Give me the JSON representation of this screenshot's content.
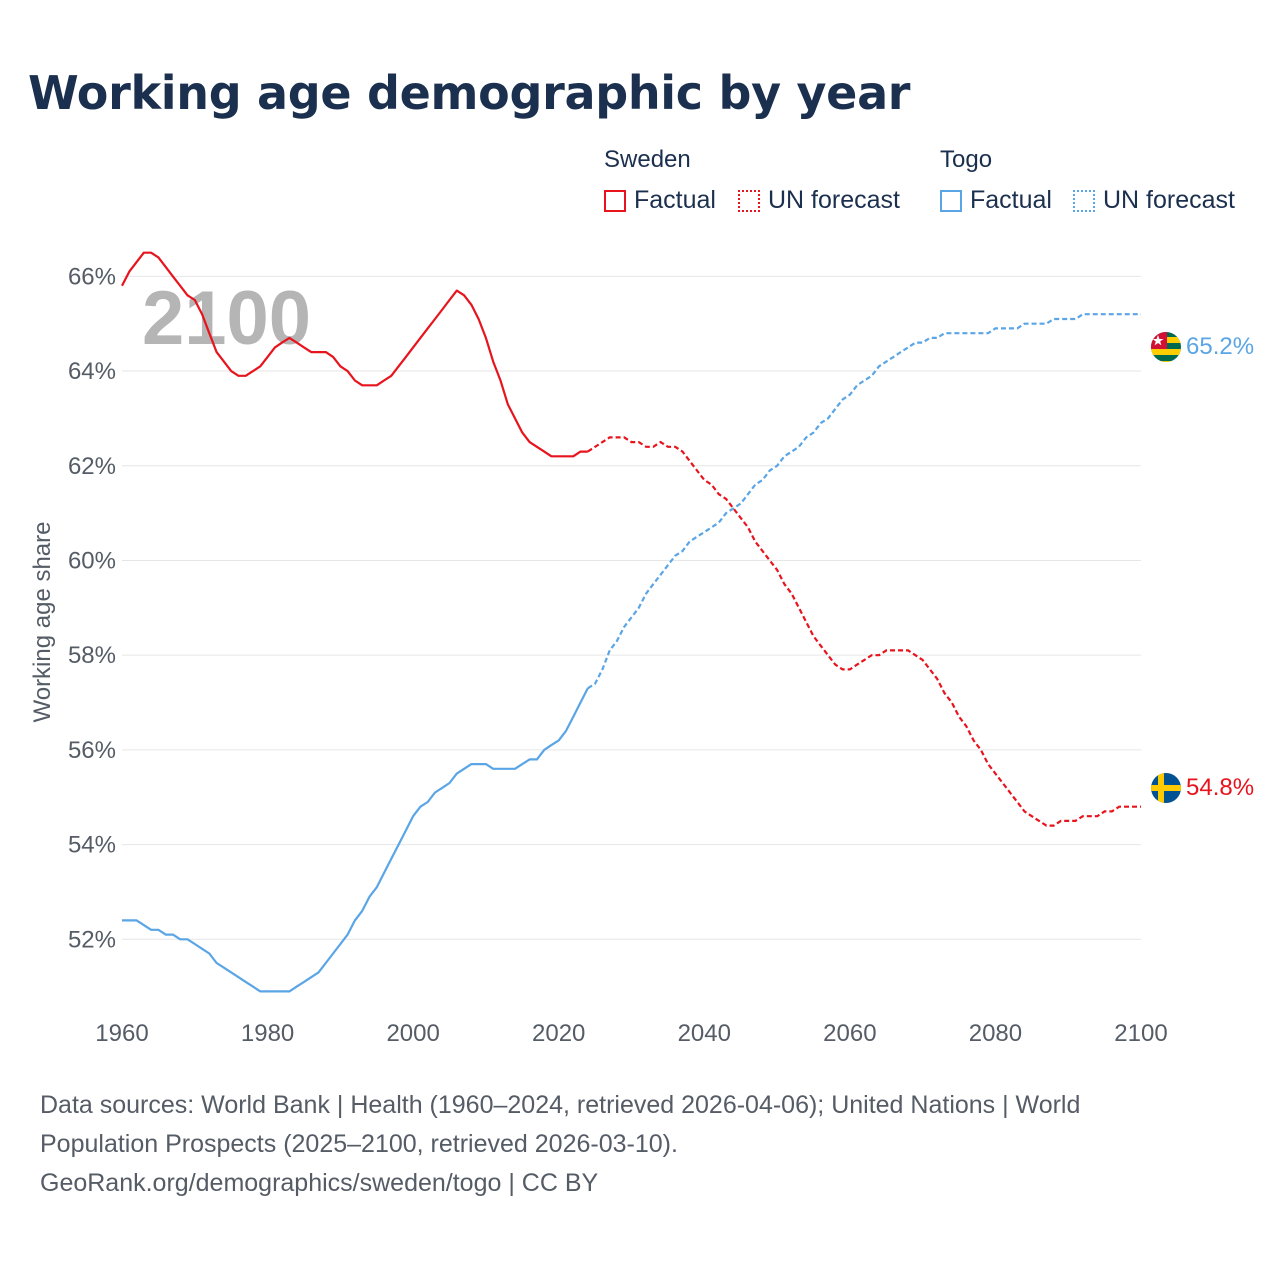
{
  "title": "Working age demographic by year",
  "legend": {
    "groups": [
      {
        "country": "Sweden",
        "factual_label": "Factual",
        "forecast_label": "UN forecast",
        "color": "#e8141d"
      },
      {
        "country": "Togo",
        "factual_label": "Factual",
        "forecast_label": "UN forecast",
        "color": "#5aa5e6"
      }
    ]
  },
  "year_overlay": "2100",
  "chart_data": {
    "type": "line",
    "title": "Working age demographic by year",
    "ylabel": "Working age share",
    "xlabel": "",
    "xlim": [
      1960,
      2100
    ],
    "ylim": [
      50,
      67
    ],
    "x_ticks": [
      1960,
      1980,
      2000,
      2020,
      2040,
      2060,
      2080,
      2100
    ],
    "y_ticks": [
      52,
      54,
      56,
      58,
      60,
      62,
      64,
      66
    ],
    "y_tick_suffix": "%",
    "grid": true,
    "factual_range": [
      1960,
      2024
    ],
    "forecast_range": [
      2024,
      2100
    ],
    "series": [
      {
        "name": "Sweden",
        "color": "#e8141d",
        "end_label": "54.8%",
        "end_flag": "sweden-flag",
        "points": [
          [
            1960,
            65.8
          ],
          [
            1961,
            66.1
          ],
          [
            1962,
            66.3
          ],
          [
            1963,
            66.5
          ],
          [
            1964,
            66.5
          ],
          [
            1965,
            66.4
          ],
          [
            1966,
            66.2
          ],
          [
            1967,
            66.0
          ],
          [
            1968,
            65.8
          ],
          [
            1969,
            65.6
          ],
          [
            1970,
            65.5
          ],
          [
            1971,
            65.2
          ],
          [
            1972,
            64.8
          ],
          [
            1973,
            64.4
          ],
          [
            1974,
            64.2
          ],
          [
            1975,
            64.0
          ],
          [
            1976,
            63.9
          ],
          [
            1977,
            63.9
          ],
          [
            1978,
            64.0
          ],
          [
            1979,
            64.1
          ],
          [
            1980,
            64.3
          ],
          [
            1981,
            64.5
          ],
          [
            1982,
            64.6
          ],
          [
            1983,
            64.7
          ],
          [
            1984,
            64.6
          ],
          [
            1985,
            64.5
          ],
          [
            1986,
            64.4
          ],
          [
            1987,
            64.4
          ],
          [
            1988,
            64.4
          ],
          [
            1989,
            64.3
          ],
          [
            1990,
            64.1
          ],
          [
            1991,
            64.0
          ],
          [
            1992,
            63.8
          ],
          [
            1993,
            63.7
          ],
          [
            1994,
            63.7
          ],
          [
            1995,
            63.7
          ],
          [
            1996,
            63.8
          ],
          [
            1997,
            63.9
          ],
          [
            1998,
            64.1
          ],
          [
            1999,
            64.3
          ],
          [
            2000,
            64.5
          ],
          [
            2001,
            64.7
          ],
          [
            2002,
            64.9
          ],
          [
            2003,
            65.1
          ],
          [
            2004,
            65.3
          ],
          [
            2005,
            65.5
          ],
          [
            2006,
            65.7
          ],
          [
            2007,
            65.6
          ],
          [
            2008,
            65.4
          ],
          [
            2009,
            65.1
          ],
          [
            2010,
            64.7
          ],
          [
            2011,
            64.2
          ],
          [
            2012,
            63.8
          ],
          [
            2013,
            63.3
          ],
          [
            2014,
            63.0
          ],
          [
            2015,
            62.7
          ],
          [
            2016,
            62.5
          ],
          [
            2017,
            62.4
          ],
          [
            2018,
            62.3
          ],
          [
            2019,
            62.2
          ],
          [
            2020,
            62.2
          ],
          [
            2021,
            62.2
          ],
          [
            2022,
            62.2
          ],
          [
            2023,
            62.3
          ],
          [
            2024,
            62.3
          ],
          [
            2025,
            62.4
          ],
          [
            2026,
            62.5
          ],
          [
            2027,
            62.6
          ],
          [
            2028,
            62.6
          ],
          [
            2029,
            62.6
          ],
          [
            2030,
            62.5
          ],
          [
            2031,
            62.5
          ],
          [
            2032,
            62.4
          ],
          [
            2033,
            62.4
          ],
          [
            2034,
            62.5
          ],
          [
            2035,
            62.4
          ],
          [
            2036,
            62.4
          ],
          [
            2037,
            62.3
          ],
          [
            2038,
            62.1
          ],
          [
            2039,
            61.9
          ],
          [
            2040,
            61.7
          ],
          [
            2041,
            61.6
          ],
          [
            2042,
            61.4
          ],
          [
            2043,
            61.3
          ],
          [
            2044,
            61.1
          ],
          [
            2045,
            60.9
          ],
          [
            2046,
            60.7
          ],
          [
            2047,
            60.4
          ],
          [
            2048,
            60.2
          ],
          [
            2049,
            60.0
          ],
          [
            2050,
            59.8
          ],
          [
            2051,
            59.5
          ],
          [
            2052,
            59.3
          ],
          [
            2053,
            59.0
          ],
          [
            2054,
            58.7
          ],
          [
            2055,
            58.4
          ],
          [
            2056,
            58.2
          ],
          [
            2057,
            58.0
          ],
          [
            2058,
            57.8
          ],
          [
            2059,
            57.7
          ],
          [
            2060,
            57.7
          ],
          [
            2061,
            57.8
          ],
          [
            2062,
            57.9
          ],
          [
            2063,
            58.0
          ],
          [
            2064,
            58.0
          ],
          [
            2065,
            58.1
          ],
          [
            2066,
            58.1
          ],
          [
            2067,
            58.1
          ],
          [
            2068,
            58.1
          ],
          [
            2069,
            58.0
          ],
          [
            2070,
            57.9
          ],
          [
            2071,
            57.7
          ],
          [
            2072,
            57.5
          ],
          [
            2073,
            57.2
          ],
          [
            2074,
            57.0
          ],
          [
            2075,
            56.7
          ],
          [
            2076,
            56.5
          ],
          [
            2077,
            56.2
          ],
          [
            2078,
            56.0
          ],
          [
            2079,
            55.7
          ],
          [
            2080,
            55.5
          ],
          [
            2081,
            55.3
          ],
          [
            2082,
            55.1
          ],
          [
            2083,
            54.9
          ],
          [
            2084,
            54.7
          ],
          [
            2085,
            54.6
          ],
          [
            2086,
            54.5
          ],
          [
            2087,
            54.4
          ],
          [
            2088,
            54.4
          ],
          [
            2089,
            54.5
          ],
          [
            2090,
            54.5
          ],
          [
            2091,
            54.5
          ],
          [
            2092,
            54.6
          ],
          [
            2093,
            54.6
          ],
          [
            2094,
            54.6
          ],
          [
            2095,
            54.7
          ],
          [
            2096,
            54.7
          ],
          [
            2097,
            54.8
          ],
          [
            2098,
            54.8
          ],
          [
            2099,
            54.8
          ],
          [
            2100,
            54.8
          ]
        ]
      },
      {
        "name": "Togo",
        "color": "#5aa5e6",
        "end_label": "65.2%",
        "end_flag": "togo-flag",
        "points": [
          [
            1960,
            52.4
          ],
          [
            1961,
            52.4
          ],
          [
            1962,
            52.4
          ],
          [
            1963,
            52.3
          ],
          [
            1964,
            52.2
          ],
          [
            1965,
            52.2
          ],
          [
            1966,
            52.1
          ],
          [
            1967,
            52.1
          ],
          [
            1968,
            52.0
          ],
          [
            1969,
            52.0
          ],
          [
            1970,
            51.9
          ],
          [
            1971,
            51.8
          ],
          [
            1972,
            51.7
          ],
          [
            1973,
            51.5
          ],
          [
            1974,
            51.4
          ],
          [
            1975,
            51.3
          ],
          [
            1976,
            51.2
          ],
          [
            1977,
            51.1
          ],
          [
            1978,
            51.0
          ],
          [
            1979,
            50.9
          ],
          [
            1980,
            50.9
          ],
          [
            1981,
            50.9
          ],
          [
            1982,
            50.9
          ],
          [
            1983,
            50.9
          ],
          [
            1984,
            51.0
          ],
          [
            1985,
            51.1
          ],
          [
            1986,
            51.2
          ],
          [
            1987,
            51.3
          ],
          [
            1988,
            51.5
          ],
          [
            1989,
            51.7
          ],
          [
            1990,
            51.9
          ],
          [
            1991,
            52.1
          ],
          [
            1992,
            52.4
          ],
          [
            1993,
            52.6
          ],
          [
            1994,
            52.9
          ],
          [
            1995,
            53.1
          ],
          [
            1996,
            53.4
          ],
          [
            1997,
            53.7
          ],
          [
            1998,
            54.0
          ],
          [
            1999,
            54.3
          ],
          [
            2000,
            54.6
          ],
          [
            2001,
            54.8
          ],
          [
            2002,
            54.9
          ],
          [
            2003,
            55.1
          ],
          [
            2004,
            55.2
          ],
          [
            2005,
            55.3
          ],
          [
            2006,
            55.5
          ],
          [
            2007,
            55.6
          ],
          [
            2008,
            55.7
          ],
          [
            2009,
            55.7
          ],
          [
            2010,
            55.7
          ],
          [
            2011,
            55.6
          ],
          [
            2012,
            55.6
          ],
          [
            2013,
            55.6
          ],
          [
            2014,
            55.6
          ],
          [
            2015,
            55.7
          ],
          [
            2016,
            55.8
          ],
          [
            2017,
            55.8
          ],
          [
            2018,
            56.0
          ],
          [
            2019,
            56.1
          ],
          [
            2020,
            56.2
          ],
          [
            2021,
            56.4
          ],
          [
            2022,
            56.7
          ],
          [
            2023,
            57.0
          ],
          [
            2024,
            57.3
          ],
          [
            2025,
            57.4
          ],
          [
            2026,
            57.7
          ],
          [
            2027,
            58.1
          ],
          [
            2028,
            58.3
          ],
          [
            2029,
            58.6
          ],
          [
            2030,
            58.8
          ],
          [
            2031,
            59.0
          ],
          [
            2032,
            59.3
          ],
          [
            2033,
            59.5
          ],
          [
            2034,
            59.7
          ],
          [
            2035,
            59.9
          ],
          [
            2036,
            60.1
          ],
          [
            2037,
            60.2
          ],
          [
            2038,
            60.4
          ],
          [
            2039,
            60.5
          ],
          [
            2040,
            60.6
          ],
          [
            2041,
            60.7
          ],
          [
            2042,
            60.8
          ],
          [
            2043,
            61.0
          ],
          [
            2044,
            61.1
          ],
          [
            2045,
            61.2
          ],
          [
            2046,
            61.4
          ],
          [
            2047,
            61.6
          ],
          [
            2048,
            61.7
          ],
          [
            2049,
            61.9
          ],
          [
            2050,
            62.0
          ],
          [
            2051,
            62.2
          ],
          [
            2052,
            62.3
          ],
          [
            2053,
            62.4
          ],
          [
            2054,
            62.6
          ],
          [
            2055,
            62.7
          ],
          [
            2056,
            62.9
          ],
          [
            2057,
            63.0
          ],
          [
            2058,
            63.2
          ],
          [
            2059,
            63.4
          ],
          [
            2060,
            63.5
          ],
          [
            2061,
            63.7
          ],
          [
            2062,
            63.8
          ],
          [
            2063,
            63.9
          ],
          [
            2064,
            64.1
          ],
          [
            2065,
            64.2
          ],
          [
            2066,
            64.3
          ],
          [
            2067,
            64.4
          ],
          [
            2068,
            64.5
          ],
          [
            2069,
            64.6
          ],
          [
            2070,
            64.6
          ],
          [
            2071,
            64.7
          ],
          [
            2072,
            64.7
          ],
          [
            2073,
            64.8
          ],
          [
            2074,
            64.8
          ],
          [
            2075,
            64.8
          ],
          [
            2076,
            64.8
          ],
          [
            2077,
            64.8
          ],
          [
            2078,
            64.8
          ],
          [
            2079,
            64.8
          ],
          [
            2080,
            64.9
          ],
          [
            2081,
            64.9
          ],
          [
            2082,
            64.9
          ],
          [
            2083,
            64.9
          ],
          [
            2084,
            65.0
          ],
          [
            2085,
            65.0
          ],
          [
            2086,
            65.0
          ],
          [
            2087,
            65.0
          ],
          [
            2088,
            65.1
          ],
          [
            2089,
            65.1
          ],
          [
            2090,
            65.1
          ],
          [
            2091,
            65.1
          ],
          [
            2092,
            65.2
          ],
          [
            2093,
            65.2
          ],
          [
            2094,
            65.2
          ],
          [
            2095,
            65.2
          ],
          [
            2096,
            65.2
          ],
          [
            2097,
            65.2
          ],
          [
            2098,
            65.2
          ],
          [
            2099,
            65.2
          ],
          [
            2100,
            65.2
          ]
        ]
      }
    ]
  },
  "footer": {
    "line1": "Data sources: World Bank | Health (1960–2024, retrieved 2026-04-06); United Nations | World",
    "line2": "Population Prospects (2025–2100, retrieved 2026-03-10).",
    "line3": "GeoRank.org/demographics/sweden/togo | CC BY"
  }
}
